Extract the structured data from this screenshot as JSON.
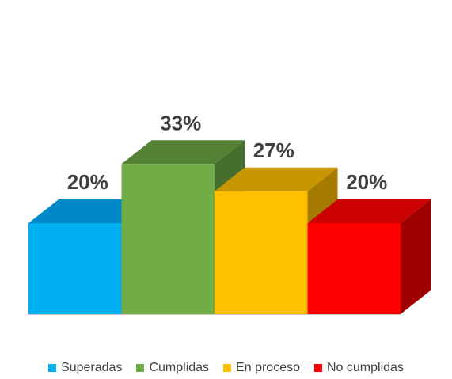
{
  "chart_data": {
    "type": "bar",
    "style": "3d-column",
    "categories": [
      "Superadas",
      "Cumplidas",
      "En proceso",
      "No cumplidas"
    ],
    "values": [
      20,
      33,
      27,
      20
    ],
    "value_labels": [
      "20%",
      "33%",
      "27%",
      "20%"
    ],
    "unit": "%",
    "ylim": [
      0,
      35
    ],
    "grid": false,
    "legend_position": "bottom",
    "colors": [
      "#00B0F0",
      "#70AD47",
      "#FFC000",
      "#FF0000"
    ],
    "top_colors": [
      "#0088C8",
      "#548235",
      "#C89600",
      "#CC0000"
    ],
    "side_colors": [
      "#0070A8",
      "#466E2C",
      "#A67C00",
      "#A00000"
    ]
  },
  "legend": {
    "items": [
      {
        "label": "Superadas",
        "color": "#00B0F0"
      },
      {
        "label": "Cumplidas",
        "color": "#70AD47"
      },
      {
        "label": "En proceso",
        "color": "#FFC000"
      },
      {
        "label": "No cumplidas",
        "color": "#FF0000"
      }
    ]
  }
}
